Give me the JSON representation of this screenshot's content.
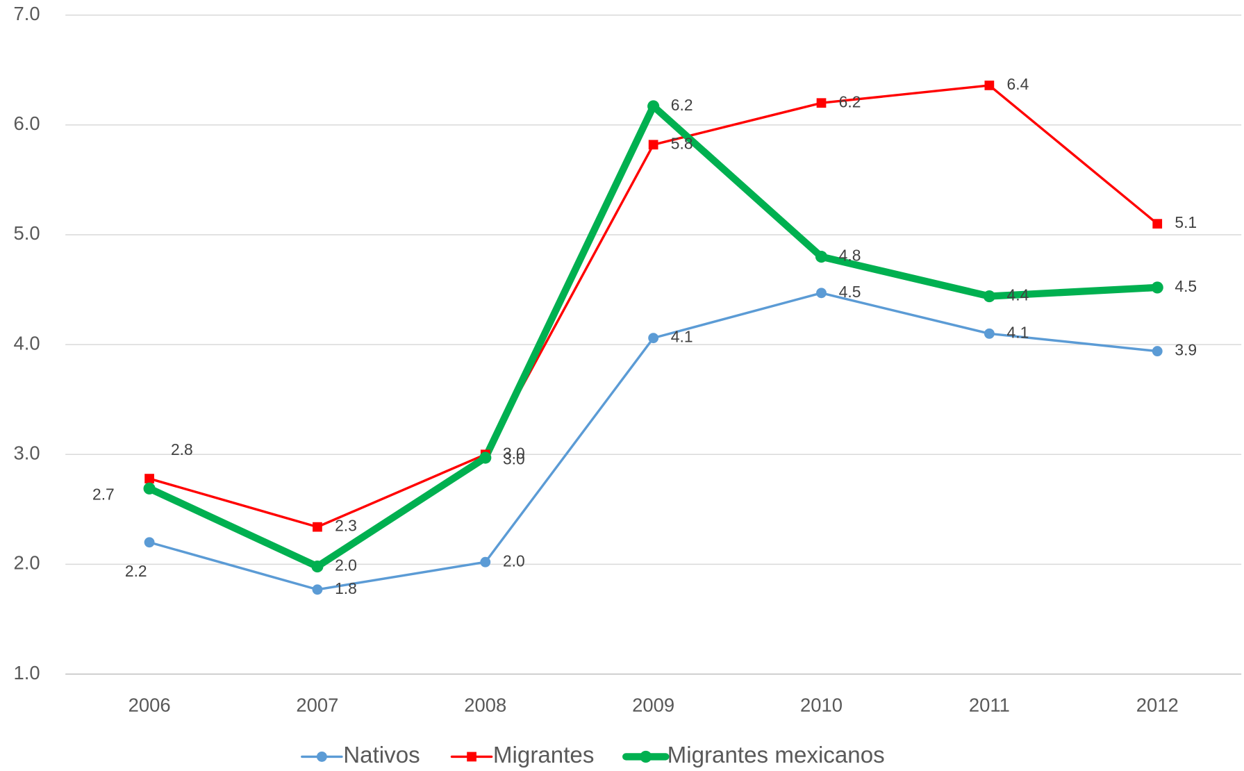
{
  "chart_data": {
    "type": "line",
    "categories": [
      "2006",
      "2007",
      "2008",
      "2009",
      "2010",
      "2011",
      "2012"
    ],
    "series": [
      {
        "name": "Nativos",
        "color": "#5b9bd5",
        "marker": "circle",
        "values": [
          2.2,
          1.77,
          2.02,
          4.06,
          4.47,
          4.1,
          3.94
        ],
        "value_labels": [
          "2.2",
          "1.8",
          "2.0",
          "4.1",
          "4.5",
          "4.1",
          "3.9"
        ]
      },
      {
        "name": "Migrantes",
        "color": "#ff0000",
        "marker": "square",
        "values": [
          2.78,
          2.34,
          3.0,
          5.82,
          6.2,
          6.36,
          5.1
        ],
        "value_labels": [
          "2.8",
          "2.3",
          "3.0",
          "5.8",
          "6.2",
          "6.4",
          "5.1"
        ]
      },
      {
        "name": "Migrantes mexicanos",
        "color": "#00b050",
        "marker": "circle",
        "values": [
          2.69,
          1.98,
          2.97,
          6.17,
          4.8,
          4.44,
          4.52
        ],
        "value_labels": [
          "2.7",
          "2.0",
          "3.0",
          "6.2",
          "4.8",
          "4.4",
          "4.5"
        ]
      }
    ],
    "ylim": [
      1,
      7
    ],
    "yticks": [
      {
        "value": 1,
        "label": "1.0"
      },
      {
        "value": 2,
        "label": "2.0"
      },
      {
        "value": 3,
        "label": "3.0"
      },
      {
        "value": 4,
        "label": "4.0"
      },
      {
        "value": 5,
        "label": "5.0"
      },
      {
        "value": 6,
        "label": "6.0"
      },
      {
        "value": 7,
        "label": "7.0"
      }
    ],
    "grid": true,
    "legend": "bottom"
  }
}
